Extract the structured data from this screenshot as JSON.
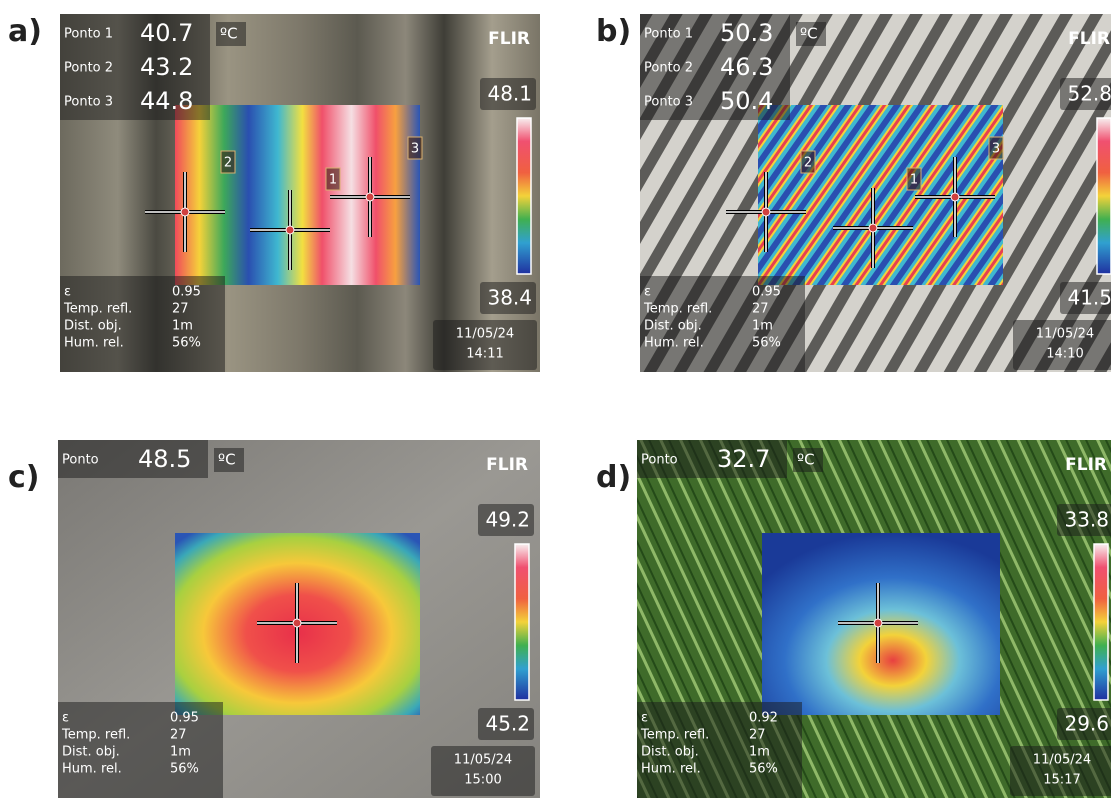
{
  "panels": [
    {
      "label": "a)",
      "unit": "ºC",
      "brand": "FLIR",
      "points": [
        {
          "name": "Ponto 1",
          "value": "40.7"
        },
        {
          "name": "Ponto 2",
          "value": "43.2"
        },
        {
          "name": "Ponto 3",
          "value": "44.8"
        }
      ],
      "markers": [
        "2",
        "1",
        "3"
      ],
      "scale_max": "48.1",
      "scale_min": "38.4",
      "params": [
        {
          "name": "ε",
          "value": "0.95"
        },
        {
          "name": "Temp. refl.",
          "value": "27"
        },
        {
          "name": "Dist. obj.",
          "value": "1m"
        },
        {
          "name": "Hum. rel.",
          "value": "56%"
        }
      ],
      "date": "11/05/24",
      "time": "14:11"
    },
    {
      "label": "b)",
      "unit": "ºC",
      "brand": "FLIR",
      "points": [
        {
          "name": "Ponto 1",
          "value": "50.3"
        },
        {
          "name": "Ponto 2",
          "value": "46.3"
        },
        {
          "name": "Ponto 3",
          "value": "50.4"
        }
      ],
      "markers": [
        "2",
        "1",
        "3"
      ],
      "scale_max": "52.8",
      "scale_min": "41.5",
      "params": [
        {
          "name": "ε",
          "value": "0.95"
        },
        {
          "name": "Temp. refl.",
          "value": "27"
        },
        {
          "name": "Dist. obj.",
          "value": "1m"
        },
        {
          "name": "Hum. rel.",
          "value": "56%"
        }
      ],
      "date": "11/05/24",
      "time": "14:10"
    },
    {
      "label": "c)",
      "unit": "ºC",
      "brand": "FLIR",
      "points": [
        {
          "name": "Ponto",
          "value": "48.5"
        }
      ],
      "markers": [],
      "scale_max": "49.2",
      "scale_min": "45.2",
      "params": [
        {
          "name": "ε",
          "value": "0.95"
        },
        {
          "name": "Temp. refl.",
          "value": "27"
        },
        {
          "name": "Dist. obj.",
          "value": "1m"
        },
        {
          "name": "Hum. rel.",
          "value": "56%"
        }
      ],
      "date": "11/05/24",
      "time": "15:00"
    },
    {
      "label": "d)",
      "unit": "ºC",
      "brand": "FLIR",
      "points": [
        {
          "name": "Ponto",
          "value": "32.7"
        }
      ],
      "markers": [],
      "scale_max": "33.8",
      "scale_min": "29.6",
      "params": [
        {
          "name": "ε",
          "value": "0.92"
        },
        {
          "name": "Temp. refl.",
          "value": "27"
        },
        {
          "name": "Dist. obj.",
          "value": "1m"
        },
        {
          "name": "Hum. rel.",
          "value": "56%"
        }
      ],
      "date": "11/05/24",
      "time": "15:17"
    }
  ]
}
